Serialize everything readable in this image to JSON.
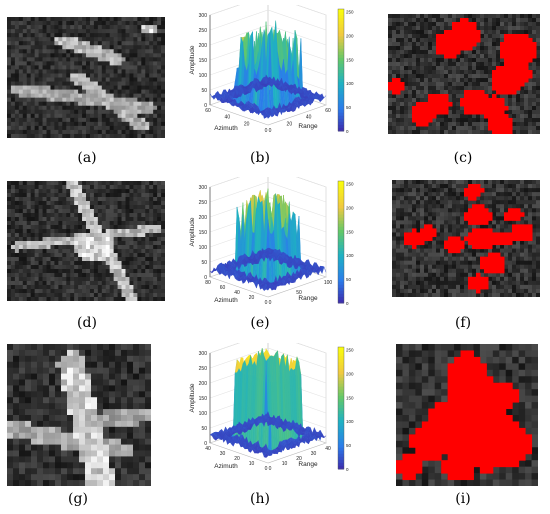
{
  "captions": [
    "(a)",
    "(b)",
    "(c)",
    "(d)",
    "(e)",
    "(f)",
    "(g)",
    "(h)",
    "(i)"
  ],
  "colormap": {
    "viridis_stops": [
      "#3e26a8",
      "#2b7dea",
      "#1fb1c3",
      "#63c869",
      "#f0c941",
      "#f9fb0e"
    ]
  },
  "mask_color": "#ff0000",
  "plots": [
    {
      "xlabel": "Azimuth",
      "ylabel": "Amplitude",
      "zlabel": "Range",
      "z_ticks": [
        "0",
        "50",
        "100",
        "150",
        "200",
        "250",
        "300"
      ],
      "azimuth_ticks": [
        "60",
        "40",
        "20",
        "0"
      ],
      "range_ticks": [
        "0",
        "20",
        "40",
        "60"
      ],
      "colorbar_ticks": [
        "250",
        "200",
        "150",
        "100",
        "50",
        "0"
      ]
    },
    {
      "xlabel": "Azimuth",
      "ylabel": "Amplitude",
      "zlabel": "Range",
      "z_ticks": [
        "0",
        "50",
        "100",
        "150",
        "200",
        "250",
        "300"
      ],
      "azimuth_ticks": [
        "80",
        "60",
        "40",
        "20",
        "0"
      ],
      "range_ticks": [
        "0",
        "50",
        "100"
      ],
      "colorbar_ticks": [
        "250",
        "200",
        "150",
        "100",
        "50",
        "0"
      ]
    },
    {
      "xlabel": "Azimuth",
      "ylabel": "Amplitude",
      "zlabel": "Range",
      "z_ticks": [
        "0",
        "50",
        "100",
        "150",
        "200",
        "250",
        "300"
      ],
      "azimuth_ticks": [
        "40",
        "30",
        "20",
        "10",
        "0"
      ],
      "range_ticks": [
        "0",
        "10",
        "20",
        "30",
        "40"
      ],
      "colorbar_ticks": [
        "250",
        "200",
        "150",
        "100",
        "50",
        "0"
      ]
    }
  ]
}
